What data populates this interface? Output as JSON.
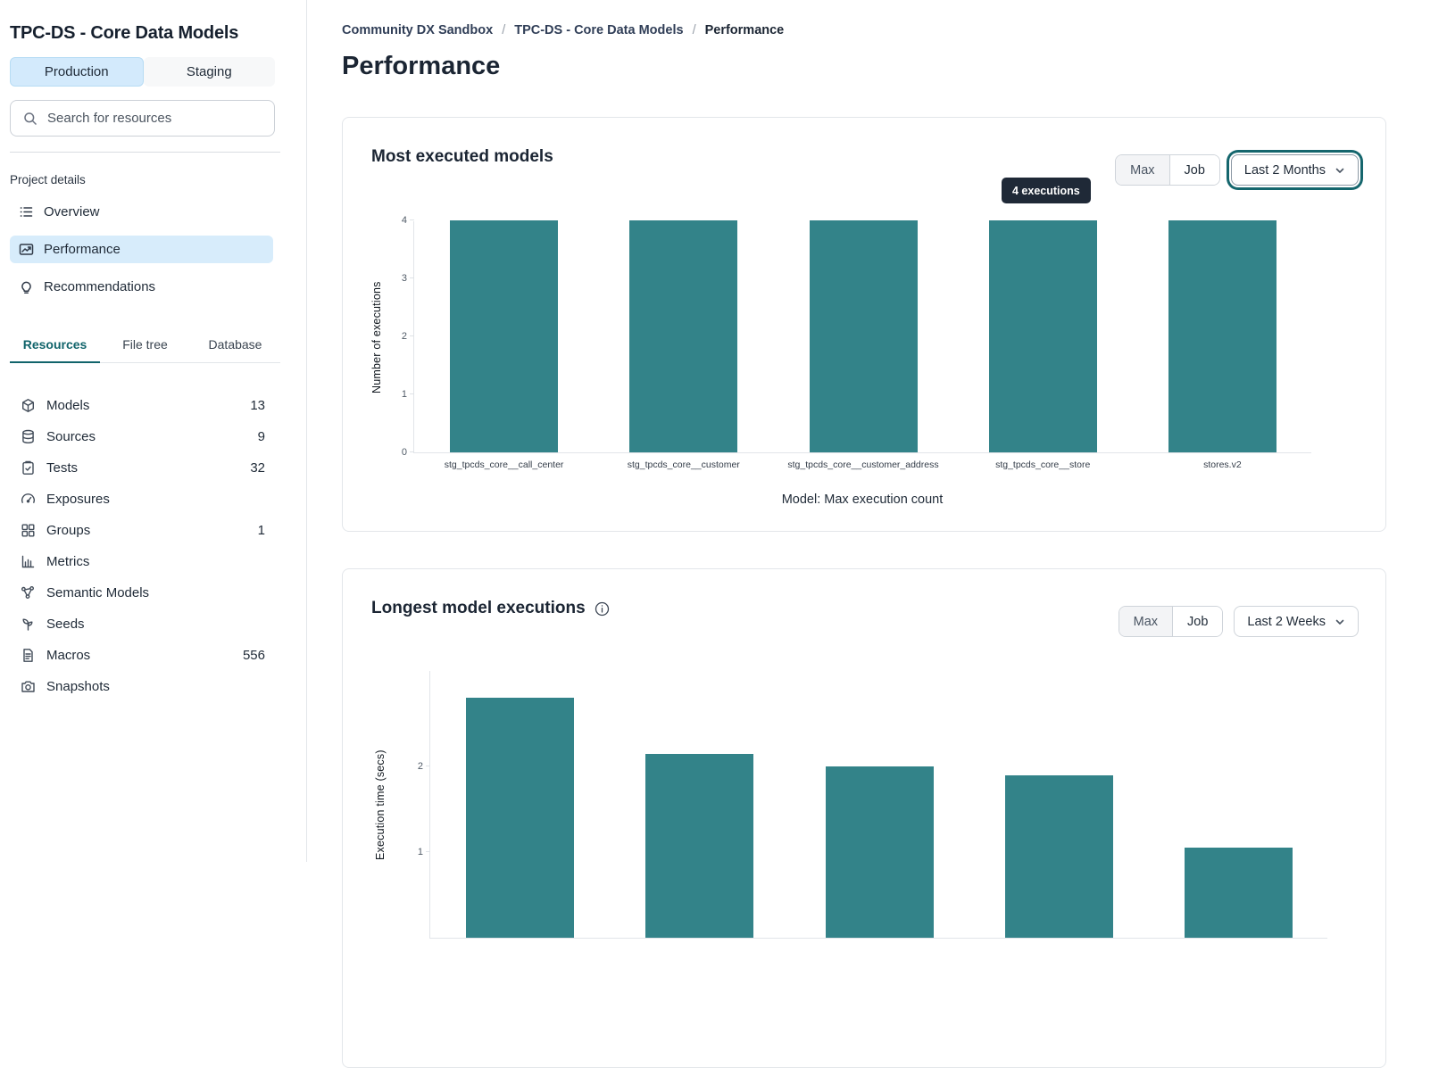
{
  "colors": {
    "accent_teal": "#11646b",
    "bar_teal": "#338389",
    "active_item_blue": "#d7ecfb",
    "env_tab_blue": "#d3eafc",
    "tooltip_bg": "#1f2937",
    "text_primary": "#1f2a37"
  },
  "sidebar": {
    "project_title": "TPC-DS - Core Data Models",
    "env_tabs": [
      {
        "label": "Production",
        "active": true
      },
      {
        "label": "Staging",
        "active": false
      }
    ],
    "search": {
      "placeholder": "Search for resources"
    },
    "section_label": "Project details",
    "nav": [
      {
        "label": "Overview",
        "icon": "list-icon",
        "active": false
      },
      {
        "label": "Performance",
        "icon": "chart-line-icon",
        "active": true
      },
      {
        "label": "Recommendations",
        "icon": "lightbulb-icon",
        "active": false
      }
    ],
    "resource_tabs": [
      {
        "label": "Resources",
        "active": true
      },
      {
        "label": "File tree",
        "active": false
      },
      {
        "label": "Database",
        "active": false
      }
    ],
    "resources": [
      {
        "label": "Models",
        "count": "13",
        "icon": "cube-icon"
      },
      {
        "label": "Sources",
        "count": "9",
        "icon": "database-icon"
      },
      {
        "label": "Tests",
        "count": "32",
        "icon": "clipboard-check-icon"
      },
      {
        "label": "Exposures",
        "count": "",
        "icon": "gauge-icon"
      },
      {
        "label": "Groups",
        "count": "1",
        "icon": "grid-icon"
      },
      {
        "label": "Metrics",
        "count": "",
        "icon": "bar-chart-icon"
      },
      {
        "label": "Semantic Models",
        "count": "",
        "icon": "nodes-icon"
      },
      {
        "label": "Seeds",
        "count": "",
        "icon": "seedling-icon"
      },
      {
        "label": "Macros",
        "count": "556",
        "icon": "file-text-icon"
      },
      {
        "label": "Snapshots",
        "count": "",
        "icon": "camera-icon"
      }
    ]
  },
  "breadcrumb": {
    "separator": "/",
    "items": [
      "Community DX Sandbox",
      "TPC-DS - Core Data Models",
      "Performance"
    ]
  },
  "page_title": "Performance",
  "cards": [
    {
      "title": "Most executed models",
      "toggle": {
        "options": [
          "Max",
          "Job"
        ],
        "selected": "Max"
      },
      "dropdown_value": "Last 2 Months"
    },
    {
      "title": "Longest model executions",
      "has_info_icon": true,
      "toggle": {
        "options": [
          "Max",
          "Job"
        ],
        "selected": "Max"
      },
      "dropdown_value": "Last 2 Weeks"
    }
  ],
  "chart_data": [
    {
      "type": "bar",
      "title": "Most executed models",
      "categories": [
        "stg_tpcds_core__call_center",
        "stg_tpcds_core__customer",
        "stg_tpcds_core__customer_address",
        "stg_tpcds_core__store",
        "stores.v2"
      ],
      "values": [
        4,
        4,
        4,
        4,
        4
      ],
      "xlabel": "Model: Max execution count",
      "ylabel": "Number of executions",
      "ylim": [
        0,
        4
      ],
      "yticks": [
        0,
        1,
        2,
        3,
        4
      ],
      "grid": false,
      "legend": false,
      "bar_color": "#338389",
      "tooltip": {
        "text": "4 executions",
        "bar_index": 3
      }
    },
    {
      "type": "bar",
      "title": "Longest model executions",
      "values": [
        2.8,
        2.15,
        2.0,
        1.9,
        1.05
      ],
      "ylabel": "Execution time (secs)",
      "yticks": [
        1,
        2
      ],
      "ylim": [
        0,
        3
      ],
      "grid": false,
      "legend": false,
      "bar_color": "#338389",
      "note_layout": "chart cropped by viewport bottom; x-axis labels not visible"
    }
  ]
}
